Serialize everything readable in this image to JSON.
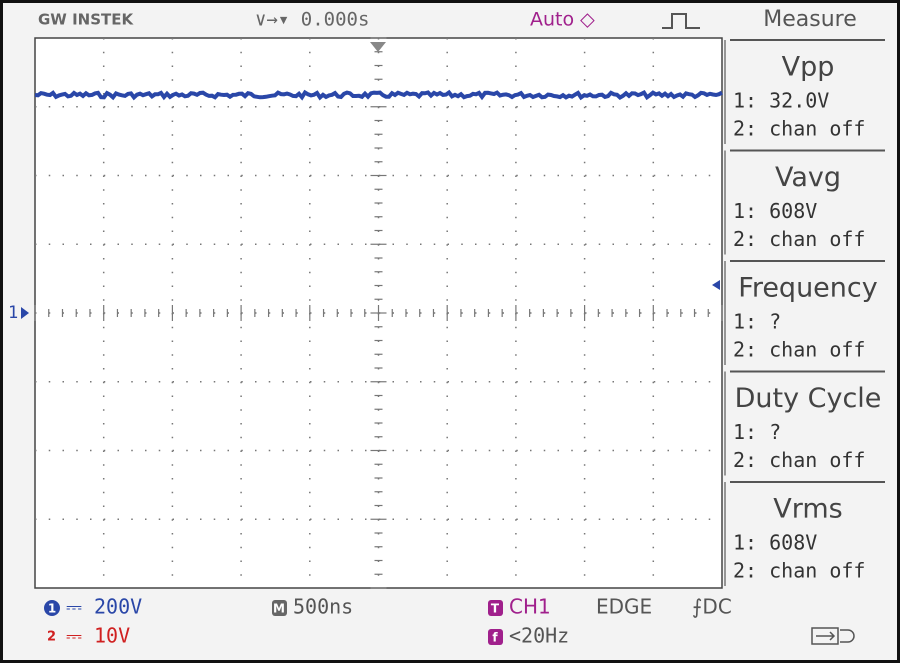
{
  "header": {
    "brand": "GW INSTEK",
    "trigger_position": "∨→▾ 0.000s",
    "mode": "Auto ◇",
    "panel_title": "Measure"
  },
  "channel_marker": "1",
  "measurements": [
    {
      "name": "Vpp",
      "ch1": "1: 32.0V",
      "ch2": "2: chan off"
    },
    {
      "name": "Vavg",
      "ch1": "1: 608V",
      "ch2": "2: chan off"
    },
    {
      "name": "Frequency",
      "ch1": "1:    ?",
      "ch2": "2: chan off"
    },
    {
      "name": "Duty Cycle",
      "ch1": "1:    ?",
      "ch2": "2: chan off"
    },
    {
      "name": "Vrms",
      "ch1": "1: 608V",
      "ch2": "2: chan off"
    }
  ],
  "footer": {
    "ch1": {
      "badge": "1",
      "text": "⎓ 200V"
    },
    "ch2": {
      "badge": "2",
      "text": "⎓ 10V"
    },
    "timebase": {
      "badge": "M",
      "text": "500ns"
    },
    "trigger": {
      "badge": "T",
      "source": "CH1",
      "type": "EDGE",
      "coupling": "⨍DC"
    },
    "filter": {
      "badge": "f",
      "text": "<20Hz"
    }
  }
}
